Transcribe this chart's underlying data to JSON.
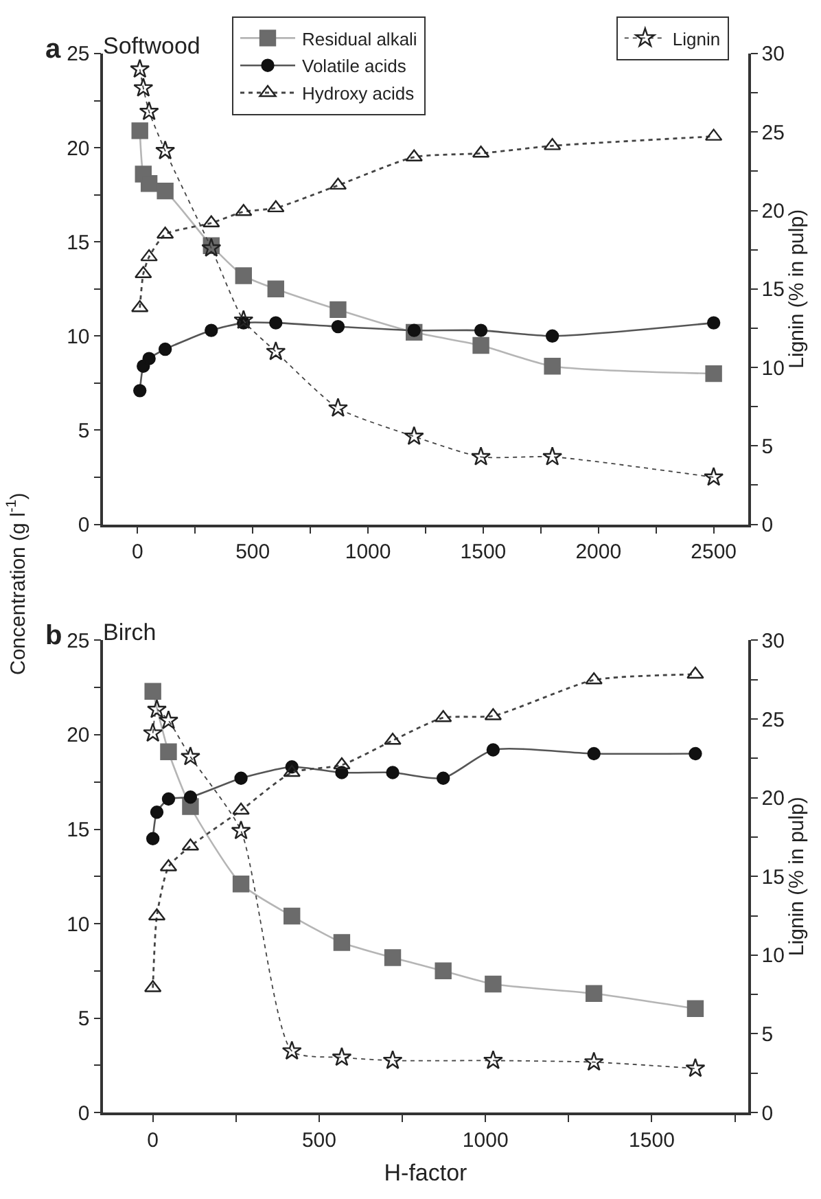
{
  "chart_data": [
    {
      "type": "line",
      "title": "Softwood",
      "annotations": [
        "a"
      ],
      "ylabel": "Concentration (g l$^{-1}$)",
      "y2label": "Lignin (% in pulp)",
      "legend": "top",
      "x": [
        10,
        25,
        50,
        120,
        320,
        460,
        600,
        870,
        1200,
        1490,
        1800,
        2500
      ],
      "series": [
        {
          "name": "Residual alkali",
          "color": "#6b6b6b",
          "marker": "square",
          "line_style": "solid",
          "values": [
            20.9,
            18.6,
            18.1,
            17.7,
            14.8,
            13.2,
            12.5,
            11.4,
            10.2,
            9.5,
            8.4,
            8.0
          ]
        },
        {
          "name": "Volatile acids",
          "color": "#111111",
          "marker": "circle",
          "line_style": "solid",
          "values": [
            7.1,
            8.4,
            8.8,
            9.3,
            10.3,
            10.7,
            10.7,
            10.5,
            10.3,
            10.3,
            10.0,
            10.7
          ]
        },
        {
          "name": "Hydroxy acids",
          "color": "#222222",
          "marker": "triangle",
          "line_style": "dashed",
          "values": [
            11.5,
            13.3,
            14.2,
            15.4,
            16.0,
            16.6,
            16.8,
            18.0,
            19.5,
            19.7,
            20.1,
            20.6
          ]
        },
        {
          "name": "Lignin",
          "color": "#222222",
          "marker": "star",
          "line_style": "dotted",
          "axis": "y2",
          "values": [
            29.0,
            27.8,
            26.3,
            23.8,
            17.6,
            13.0,
            11.0,
            7.4,
            5.6,
            4.3,
            4.3,
            3.0
          ]
        }
      ],
      "xlim": [
        -150,
        2650
      ],
      "xticks": [
        0,
        {
          "value": 250,
          "label": null
        },
        500,
        {
          "value": 750,
          "label": null
        },
        1000,
        {
          "value": 1250,
          "label": null
        },
        1500,
        {
          "value": 1750,
          "label": null
        },
        2000,
        {
          "value": 2250,
          "label": null
        },
        2500
      ],
      "ylim": [
        0,
        25
      ],
      "yticks": [
        0,
        {
          "value": 2.5,
          "label": null
        },
        5,
        {
          "value": 7.5,
          "label": null
        },
        10,
        {
          "value": 12.5,
          "label": null
        },
        15,
        {
          "value": 17.5,
          "label": null
        },
        20,
        {
          "value": 22.5,
          "label": null
        },
        25
      ],
      "y2lim": [
        0,
        30
      ],
      "y2ticks": [
        0,
        {
          "value": 2.5,
          "label": null
        },
        5,
        {
          "value": 7.5,
          "label": null
        },
        10,
        {
          "value": 12.5,
          "label": null
        },
        15,
        {
          "value": 17.5,
          "label": null
        },
        20,
        {
          "value": 22.5,
          "label": null
        },
        25,
        {
          "value": 27.5,
          "label": null
        },
        30
      ]
    },
    {
      "type": "line",
      "title": "Birch",
      "annotations": [
        "b"
      ],
      "xlabel": "H-factor",
      "y2label": "Lignin (% in pulp)",
      "x": [
        0,
        12,
        47,
        113,
        265,
        418,
        568,
        721,
        873,
        1023,
        1326,
        1631
      ],
      "series": [
        {
          "color": "#6b6b6b",
          "marker": "square",
          "line_style": "solid",
          "values": [
            22.3,
            null,
            19.1,
            16.2,
            12.1,
            10.4,
            9.0,
            8.2,
            7.5,
            6.8,
            6.3,
            5.5
          ]
        },
        {
          "color": "#111111",
          "marker": "circle",
          "line_style": "solid",
          "values": [
            14.5,
            15.9,
            16.6,
            16.7,
            17.7,
            18.3,
            18.0,
            18.0,
            17.7,
            19.2,
            19.0,
            19.0
          ]
        },
        {
          "color": "#222222",
          "marker": "triangle",
          "line_style": "dashed",
          "values": [
            6.6,
            10.4,
            13.0,
            14.1,
            16.0,
            18.0,
            18.4,
            19.7,
            20.9,
            21.0,
            22.9,
            23.2
          ]
        },
        {
          "color": "#222222",
          "marker": "star",
          "line_style": "dotted",
          "axis": "y2",
          "values": [
            24.1,
            25.6,
            24.9,
            22.6,
            17.9,
            3.9,
            3.5,
            3.3,
            null,
            3.3,
            3.2,
            2.8
          ]
        }
      ],
      "xlim": [
        -150,
        1790
      ],
      "xticks": [
        0,
        {
          "value": 250,
          "label": null
        },
        500,
        {
          "value": 750,
          "label": null
        },
        1000,
        {
          "value": 1250,
          "label": null
        },
        1500,
        {
          "value": 1750,
          "label": null
        }
      ],
      "ylim": [
        0,
        25
      ],
      "yticks": [
        0,
        {
          "value": 2.5,
          "label": null
        },
        5,
        {
          "value": 7.5,
          "label": null
        },
        10,
        {
          "value": 12.5,
          "label": null
        },
        15,
        {
          "value": 17.5,
          "label": null
        },
        20,
        {
          "value": 22.5,
          "label": null
        },
        25
      ],
      "y2lim": [
        0,
        30
      ],
      "y2ticks": [
        0,
        {
          "value": 2.5,
          "label": null
        },
        5,
        {
          "value": 7.5,
          "label": null
        },
        10,
        {
          "value": 12.5,
          "label": null
        },
        15,
        {
          "value": 17.5,
          "label": null
        },
        20,
        {
          "value": 22.5,
          "label": null
        },
        25,
        {
          "value": 27.5,
          "label": null
        },
        30
      ]
    }
  ]
}
